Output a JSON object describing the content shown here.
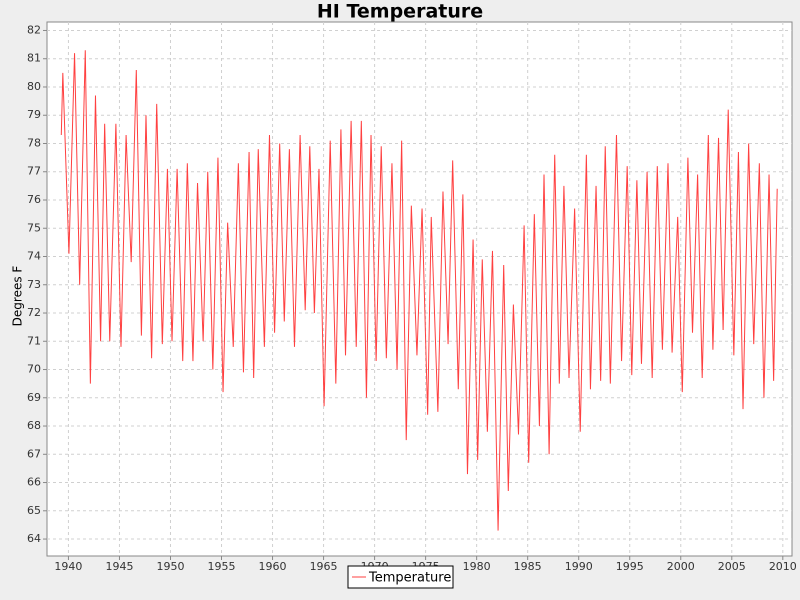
{
  "chart_data": {
    "type": "line",
    "title": "HI Temperature",
    "y_label": "Degrees F",
    "xlim": [
      1937.9,
      2010.9
    ],
    "xticks": [
      1940,
      1945,
      1950,
      1955,
      1960,
      1965,
      1970,
      1975,
      1980,
      1985,
      1990,
      1995,
      2000,
      2005,
      2010
    ],
    "ylim": [
      63.4,
      82.3
    ],
    "yticks": [
      64,
      65,
      66,
      67,
      68,
      69,
      70,
      71,
      72,
      73,
      74,
      75,
      76,
      77,
      78,
      79,
      80,
      81,
      82
    ],
    "grid": true,
    "legend": "bottom",
    "x": [
      1939.3,
      1939.45,
      1940.05,
      1940.6,
      1941.1,
      1941.65,
      1942.15,
      1942.65,
      1943.15,
      1943.55,
      1944.05,
      1944.65,
      1945.15,
      1945.65,
      1946.15,
      1946.65,
      1947.15,
      1947.6,
      1948.15,
      1948.65,
      1949.2,
      1949.7,
      1950.15,
      1950.65,
      1951.2,
      1951.65,
      1952.2,
      1952.65,
      1953.2,
      1953.65,
      1954.15,
      1954.65,
      1955.15,
      1955.6,
      1956.15,
      1956.65,
      1957.15,
      1957.7,
      1958.15,
      1958.6,
      1959.2,
      1959.7,
      1960.2,
      1960.7,
      1961.15,
      1961.65,
      1962.15,
      1962.7,
      1963.2,
      1963.65,
      1964.1,
      1964.55,
      1965.05,
      1965.65,
      1966.2,
      1966.7,
      1967.15,
      1967.7,
      1968.2,
      1968.7,
      1969.2,
      1969.65,
      1970.15,
      1970.65,
      1971.15,
      1971.7,
      1972.2,
      1972.65,
      1973.1,
      1973.6,
      1974.15,
      1974.65,
      1975.2,
      1975.55,
      1976.2,
      1976.7,
      1977.2,
      1977.65,
      1978.2,
      1978.65,
      1979.1,
      1979.65,
      1980.1,
      1980.55,
      1981.05,
      1981.55,
      1982.1,
      1982.65,
      1983.1,
      1983.6,
      1984.1,
      1984.65,
      1985.1,
      1985.65,
      1986.15,
      1986.6,
      1987.1,
      1987.65,
      1988.1,
      1988.55,
      1989.05,
      1989.6,
      1990.15,
      1990.75,
      1991.15,
      1991.7,
      1992.15,
      1992.6,
      1993.1,
      1993.7,
      1994.2,
      1994.75,
      1995.2,
      1995.7,
      1996.15,
      1996.7,
      1997.2,
      1997.7,
      1998.2,
      1998.75,
      1999.15,
      1999.7,
      2000.15,
      2000.7,
      2001.15,
      2001.65,
      2002.1,
      2002.7,
      2003.15,
      2003.7,
      2004.15,
      2004.65,
      2005.2,
      2005.65,
      2006.1,
      2006.65,
      2007.15,
      2007.7,
      2008.15,
      2008.65,
      2009.1,
      2009.45
    ],
    "series": [
      {
        "name": "Temperature",
        "color": "#ff4040",
        "values": [
          78.3,
          80.5,
          74.1,
          81.2,
          73.0,
          81.3,
          69.5,
          79.7,
          71.0,
          78.7,
          71.0,
          78.7,
          70.8,
          78.3,
          73.8,
          80.6,
          71.2,
          79.0,
          70.4,
          79.4,
          70.9,
          77.1,
          71.0,
          77.1,
          70.3,
          77.3,
          70.3,
          76.6,
          71.0,
          77.0,
          70.0,
          77.5,
          69.2,
          75.2,
          70.8,
          77.3,
          69.9,
          77.7,
          69.7,
          77.8,
          70.8,
          78.3,
          71.3,
          78.0,
          71.7,
          77.8,
          70.8,
          78.3,
          72.1,
          77.9,
          72.0,
          77.1,
          68.7,
          78.1,
          69.5,
          78.5,
          70.5,
          78.8,
          70.8,
          78.8,
          69.0,
          78.3,
          70.3,
          77.9,
          70.4,
          77.3,
          70.0,
          78.1,
          67.5,
          75.8,
          70.5,
          75.7,
          68.4,
          75.4,
          68.5,
          76.3,
          70.9,
          77.4,
          69.3,
          76.2,
          66.3,
          74.6,
          66.8,
          73.9,
          67.8,
          74.2,
          64.3,
          73.7,
          65.7,
          72.3,
          67.7,
          75.1,
          66.7,
          75.5,
          68.0,
          76.9,
          67.0,
          77.6,
          69.5,
          76.5,
          69.7,
          75.7,
          67.8,
          77.6,
          69.3,
          76.5,
          69.6,
          77.9,
          69.5,
          78.3,
          70.3,
          77.2,
          69.8,
          76.7,
          70.2,
          77.0,
          69.7,
          77.2,
          70.7,
          77.3,
          70.6,
          75.4,
          69.2,
          77.5,
          71.3,
          76.9,
          69.7,
          78.3,
          70.7,
          78.2,
          71.4,
          79.2,
          70.5,
          77.7,
          68.6,
          78.0,
          70.9,
          77.3,
          69.0,
          76.9,
          69.6,
          76.4
        ]
      }
    ]
  }
}
